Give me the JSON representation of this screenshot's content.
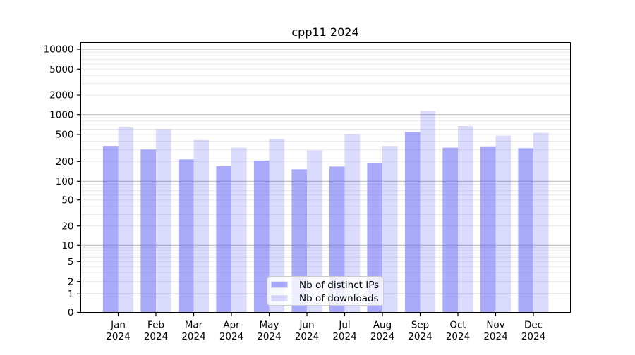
{
  "title": "cpp11 2024",
  "legend": {
    "items": [
      {
        "label": "Nb of distinct IPs",
        "color": "rgba(85,85,245,0.50)",
        "solid_hex": "#aaaaf9"
      },
      {
        "label": "Nb of downloads",
        "color": "rgba(85,85,245,0.21)",
        "solid_hex": "#dbdbfa"
      }
    ]
  },
  "chart_data": {
    "type": "bar",
    "title": "cpp11 2024",
    "categories": [
      "Jan 2024",
      "Feb 2024",
      "Mar 2024",
      "Apr 2024",
      "May 2024",
      "Jun 2024",
      "Jul 2024",
      "Aug 2024",
      "Sep 2024",
      "Oct 2024",
      "Nov 2024",
      "Dec 2024"
    ],
    "series": [
      {
        "name": "Nb of distinct IPs",
        "values": [
          340,
          300,
          215,
          170,
          207,
          152,
          168,
          187,
          545,
          320,
          335,
          315
        ]
      },
      {
        "name": "Nb of downloads",
        "values": [
          640,
          605,
          415,
          320,
          430,
          293,
          510,
          340,
          1140,
          670,
          480,
          530
        ]
      }
    ],
    "yscale": "symlog",
    "y_ticks": [
      0,
      1,
      2,
      5,
      10,
      20,
      50,
      100,
      200,
      500,
      1000,
      2000,
      5000,
      10000
    ],
    "grid": true,
    "legend_position": "lower center",
    "colors": {
      "axis": "#000000",
      "grid_major": "#b5b5b5",
      "grid_minor": "#e8e8e8"
    }
  }
}
